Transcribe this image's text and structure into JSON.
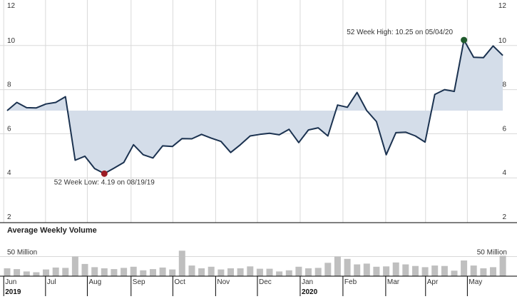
{
  "chart_data": {
    "type": "line",
    "price": {
      "weeks": [
        7.05,
        7.42,
        7.18,
        7.17,
        7.35,
        7.42,
        7.68,
        4.8,
        4.98,
        4.42,
        4.19,
        4.44,
        4.7,
        5.5,
        5.05,
        4.9,
        5.45,
        5.42,
        5.78,
        5.77,
        5.97,
        5.8,
        5.65,
        5.15,
        5.5,
        5.9,
        5.97,
        6.02,
        5.95,
        6.2,
        5.6,
        6.17,
        6.27,
        5.9,
        7.3,
        7.2,
        7.87,
        7.05,
        6.55,
        5.05,
        6.05,
        6.07,
        5.9,
        5.62,
        7.78,
        8.0,
        7.92,
        10.25,
        9.47,
        9.45,
        9.98,
        9.55
      ],
      "ylim": [
        2,
        12
      ],
      "yticks": [
        "2",
        "4",
        "6",
        "8",
        "10",
        "12"
      ],
      "band": {
        "from": 7.05,
        "weekly_close": true
      },
      "high": {
        "week": 47,
        "value": 10.25,
        "label": "52 Week High: 10.25 on 05/04/20",
        "color": "#1f5a2c"
      },
      "low": {
        "week": 10,
        "value": 4.19,
        "label": "52 Week Low: 4.19 on 08/19/19",
        "color": "#9c1b24"
      }
    },
    "volume": {
      "title": "Average Weekly Volume",
      "ref_value": 50,
      "ref_label": "50 Million",
      "max_value": 100,
      "weeks": [
        20,
        18,
        12,
        10,
        17,
        22,
        21,
        50,
        31,
        23,
        20,
        18,
        21,
        24,
        15,
        18,
        22,
        17,
        65,
        27,
        20,
        24,
        17,
        20,
        20,
        25,
        19,
        19,
        12,
        15,
        24,
        20,
        21,
        34,
        50,
        44,
        30,
        32,
        24,
        25,
        35,
        30,
        26,
        23,
        27,
        26,
        14,
        40,
        27,
        20,
        23,
        52
      ]
    },
    "x_axis": {
      "months": [
        {
          "label": "Jun",
          "week": -0.35
        },
        {
          "label": "Jul",
          "week": 3.95
        },
        {
          "label": "Aug",
          "week": 8.25
        },
        {
          "label": "Sep",
          "week": 12.75
        },
        {
          "label": "Oct",
          "week": 17.05
        },
        {
          "label": "Nov",
          "week": 21.45
        },
        {
          "label": "Dec",
          "week": 25.75
        },
        {
          "label": "Jan",
          "week": 30.15
        },
        {
          "label": "Feb",
          "week": 34.55
        },
        {
          "label": "Mar",
          "week": 38.95
        },
        {
          "label": "Apr",
          "week": 43.05
        },
        {
          "label": "May",
          "week": 47.35
        }
      ],
      "years": [
        {
          "label": "2019",
          "week": -0.35
        },
        {
          "label": "2020",
          "week": 30.15
        }
      ]
    }
  },
  "colors": {
    "line": "#1b3250",
    "band_fill": "#d4dde9",
    "bar": "#bfbfbf",
    "grid": "#d9d9d9",
    "axis": "#000000",
    "text": "#333333"
  }
}
